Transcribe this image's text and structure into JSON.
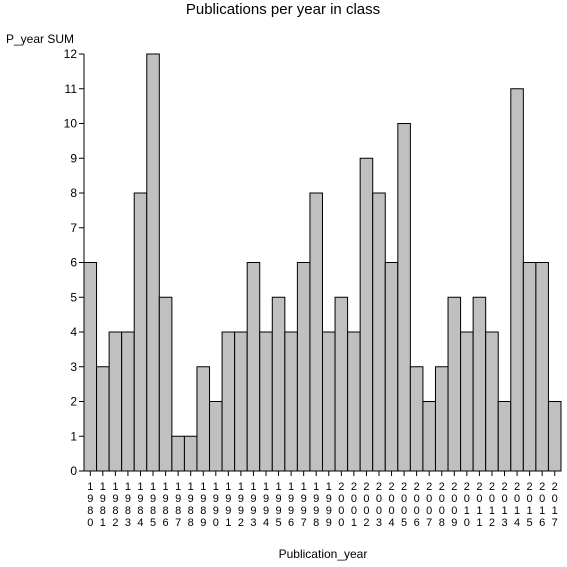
{
  "chart_data": {
    "type": "bar",
    "title": "Publications per year in class",
    "xlabel": "Publication_year",
    "ylabel": "P_year SUM",
    "ylim": [
      0,
      12
    ],
    "yticks": [
      0,
      1,
      2,
      3,
      4,
      5,
      6,
      7,
      8,
      9,
      10,
      11,
      12
    ],
    "grid": false,
    "legend": "none",
    "bar_color": "#c0c0c0",
    "edge_color": "#000000",
    "categories": [
      "1980",
      "1981",
      "1982",
      "1983",
      "1984",
      "1985",
      "1986",
      "1987",
      "1988",
      "1989",
      "1990",
      "1991",
      "1992",
      "1993",
      "1994",
      "1995",
      "1996",
      "1997",
      "1998",
      "1999",
      "2000",
      "2001",
      "2002",
      "2003",
      "2004",
      "2005",
      "2006",
      "2007",
      "2008",
      "2009",
      "2010",
      "2011",
      "2012",
      "2013",
      "2014",
      "2015",
      "2016",
      "2017"
    ],
    "values": [
      6,
      3,
      4,
      4,
      8,
      12,
      5,
      1,
      1,
      3,
      2,
      4,
      4,
      6,
      4,
      5,
      4,
      6,
      8,
      4,
      5,
      4,
      9,
      8,
      6,
      10,
      3,
      2,
      3,
      5,
      4,
      5,
      4,
      2,
      11,
      6,
      6,
      2
    ]
  }
}
